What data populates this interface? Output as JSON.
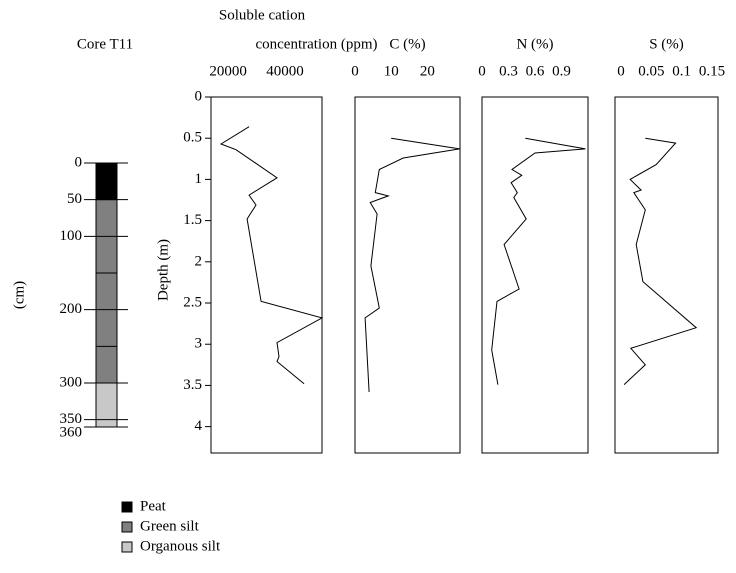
{
  "chart_data": [
    {
      "type": "stratigraphy",
      "title": "Core T11",
      "ylabel": "(cm)",
      "ylim": [
        0,
        360
      ],
      "yticks": [
        0,
        50,
        100,
        200,
        300,
        350,
        360
      ],
      "minor_yticks": [
        150,
        250
      ],
      "layers": [
        {
          "name": "Peat",
          "color": "#000000",
          "top": 0,
          "bottom": 50
        },
        {
          "name": "Green silt",
          "color": "#808080",
          "top": 50,
          "bottom": 300
        },
        {
          "name": "Organous silt",
          "color": "#c8c8c8",
          "top": 300,
          "bottom": 360
        }
      ]
    },
    {
      "type": "line",
      "title": [
        "Soluble cation",
        "concentration (ppm)"
      ],
      "ylabel": "Depth (m)",
      "xlim": [
        14000,
        53000
      ],
      "xticks": [
        20000,
        40000
      ],
      "ylim": [
        0,
        4.32
      ],
      "yticks": [
        0,
        0.5,
        1,
        1.5,
        2,
        2.5,
        3,
        3.5,
        4
      ],
      "y_inverted": true,
      "color": "#000000",
      "x": [
        27400,
        17500,
        22800,
        37200,
        27400,
        29800,
        26700,
        31600,
        53000,
        37200,
        37900,
        37200,
        46700
      ],
      "y": [
        0.36,
        0.57,
        0.64,
        0.98,
        1.19,
        1.31,
        1.48,
        2.48,
        2.68,
        2.98,
        3.15,
        3.21,
        3.48
      ]
    },
    {
      "type": "line",
      "title": [
        "C (%)"
      ],
      "xlim": [
        0,
        29
      ],
      "xticks": [
        0,
        10,
        20
      ],
      "ylim": [
        0,
        4.32
      ],
      "y_inverted": true,
      "color": "#000000",
      "x": [
        10,
        28.9,
        13.3,
        6.7,
        5.6,
        9.2,
        4.2,
        6.1,
        4.4,
        6.7,
        2.8,
        3.9
      ],
      "y": [
        0.5,
        0.63,
        0.74,
        0.88,
        1.16,
        1.2,
        1.28,
        1.42,
        2.05,
        2.56,
        2.68,
        3.58
      ]
    },
    {
      "type": "line",
      "title": [
        "N (%)"
      ],
      "xlim": [
        0,
        1.2
      ],
      "xticks": [
        0,
        0.3,
        0.6,
        0.9
      ],
      "ylim": [
        0,
        4.32
      ],
      "y_inverted": true,
      "color": "#000000",
      "x": [
        0.49,
        1.17,
        0.6,
        0.34,
        0.45,
        0.33,
        0.4,
        0.36,
        0.5,
        0.25,
        0.42,
        0.17,
        0.11,
        0.18
      ],
      "y": [
        0.5,
        0.63,
        0.68,
        0.88,
        0.95,
        1.04,
        1.16,
        1.22,
        1.48,
        1.79,
        2.33,
        2.48,
        3.07,
        3.49
      ]
    },
    {
      "type": "line",
      "title": [
        "S (%)"
      ],
      "xlim": [
        -0.01,
        0.16
      ],
      "xticks": [
        0,
        0.05,
        0.1,
        0.15
      ],
      "ylim": [
        0,
        4.32
      ],
      "y_inverted": true,
      "color": "#000000",
      "x": [
        0.04,
        0.09,
        0.058,
        0.015,
        0.033,
        0.021,
        0.04,
        0.025,
        0.036,
        0.124,
        0.016,
        0.04,
        0.005
      ],
      "y": [
        0.5,
        0.56,
        0.82,
        1.0,
        1.13,
        1.16,
        1.37,
        1.79,
        2.24,
        2.8,
        3.05,
        3.25,
        3.49
      ]
    }
  ]
}
